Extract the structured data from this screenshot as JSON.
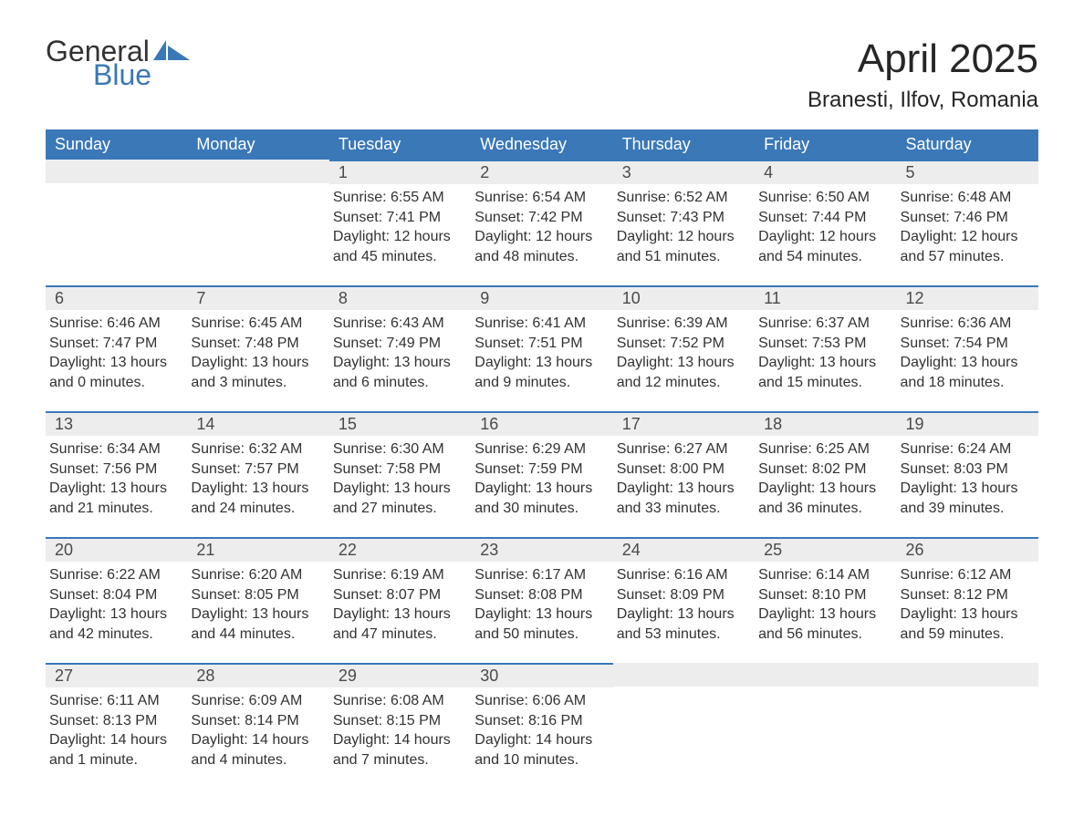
{
  "logo": {
    "general": "General",
    "blue": "Blue"
  },
  "title": {
    "month": "April 2025",
    "location": "Branesti, Ilfov, Romania"
  },
  "colors": {
    "header_bg": "#3a78b8",
    "header_text": "#ffffff",
    "daynum_bg": "#ededed",
    "daynum_border": "#3a78b8",
    "body_text": "#323232",
    "page_bg": "#ffffff",
    "logo_blue": "#3a78b8"
  },
  "weekdays": [
    "Sunday",
    "Monday",
    "Tuesday",
    "Wednesday",
    "Thursday",
    "Friday",
    "Saturday"
  ],
  "weeks": [
    [
      {
        "day": "",
        "sunrise": "",
        "sunset": "",
        "daylight": ""
      },
      {
        "day": "",
        "sunrise": "",
        "sunset": "",
        "daylight": ""
      },
      {
        "day": "1",
        "sunrise": "Sunrise: 6:55 AM",
        "sunset": "Sunset: 7:41 PM",
        "daylight": "Daylight: 12 hours and 45 minutes."
      },
      {
        "day": "2",
        "sunrise": "Sunrise: 6:54 AM",
        "sunset": "Sunset: 7:42 PM",
        "daylight": "Daylight: 12 hours and 48 minutes."
      },
      {
        "day": "3",
        "sunrise": "Sunrise: 6:52 AM",
        "sunset": "Sunset: 7:43 PM",
        "daylight": "Daylight: 12 hours and 51 minutes."
      },
      {
        "day": "4",
        "sunrise": "Sunrise: 6:50 AM",
        "sunset": "Sunset: 7:44 PM",
        "daylight": "Daylight: 12 hours and 54 minutes."
      },
      {
        "day": "5",
        "sunrise": "Sunrise: 6:48 AM",
        "sunset": "Sunset: 7:46 PM",
        "daylight": "Daylight: 12 hours and 57 minutes."
      }
    ],
    [
      {
        "day": "6",
        "sunrise": "Sunrise: 6:46 AM",
        "sunset": "Sunset: 7:47 PM",
        "daylight": "Daylight: 13 hours and 0 minutes."
      },
      {
        "day": "7",
        "sunrise": "Sunrise: 6:45 AM",
        "sunset": "Sunset: 7:48 PM",
        "daylight": "Daylight: 13 hours and 3 minutes."
      },
      {
        "day": "8",
        "sunrise": "Sunrise: 6:43 AM",
        "sunset": "Sunset: 7:49 PM",
        "daylight": "Daylight: 13 hours and 6 minutes."
      },
      {
        "day": "9",
        "sunrise": "Sunrise: 6:41 AM",
        "sunset": "Sunset: 7:51 PM",
        "daylight": "Daylight: 13 hours and 9 minutes."
      },
      {
        "day": "10",
        "sunrise": "Sunrise: 6:39 AM",
        "sunset": "Sunset: 7:52 PM",
        "daylight": "Daylight: 13 hours and 12 minutes."
      },
      {
        "day": "11",
        "sunrise": "Sunrise: 6:37 AM",
        "sunset": "Sunset: 7:53 PM",
        "daylight": "Daylight: 13 hours and 15 minutes."
      },
      {
        "day": "12",
        "sunrise": "Sunrise: 6:36 AM",
        "sunset": "Sunset: 7:54 PM",
        "daylight": "Daylight: 13 hours and 18 minutes."
      }
    ],
    [
      {
        "day": "13",
        "sunrise": "Sunrise: 6:34 AM",
        "sunset": "Sunset: 7:56 PM",
        "daylight": "Daylight: 13 hours and 21 minutes."
      },
      {
        "day": "14",
        "sunrise": "Sunrise: 6:32 AM",
        "sunset": "Sunset: 7:57 PM",
        "daylight": "Daylight: 13 hours and 24 minutes."
      },
      {
        "day": "15",
        "sunrise": "Sunrise: 6:30 AM",
        "sunset": "Sunset: 7:58 PM",
        "daylight": "Daylight: 13 hours and 27 minutes."
      },
      {
        "day": "16",
        "sunrise": "Sunrise: 6:29 AM",
        "sunset": "Sunset: 7:59 PM",
        "daylight": "Daylight: 13 hours and 30 minutes."
      },
      {
        "day": "17",
        "sunrise": "Sunrise: 6:27 AM",
        "sunset": "Sunset: 8:00 PM",
        "daylight": "Daylight: 13 hours and 33 minutes."
      },
      {
        "day": "18",
        "sunrise": "Sunrise: 6:25 AM",
        "sunset": "Sunset: 8:02 PM",
        "daylight": "Daylight: 13 hours and 36 minutes."
      },
      {
        "day": "19",
        "sunrise": "Sunrise: 6:24 AM",
        "sunset": "Sunset: 8:03 PM",
        "daylight": "Daylight: 13 hours and 39 minutes."
      }
    ],
    [
      {
        "day": "20",
        "sunrise": "Sunrise: 6:22 AM",
        "sunset": "Sunset: 8:04 PM",
        "daylight": "Daylight: 13 hours and 42 minutes."
      },
      {
        "day": "21",
        "sunrise": "Sunrise: 6:20 AM",
        "sunset": "Sunset: 8:05 PM",
        "daylight": "Daylight: 13 hours and 44 minutes."
      },
      {
        "day": "22",
        "sunrise": "Sunrise: 6:19 AM",
        "sunset": "Sunset: 8:07 PM",
        "daylight": "Daylight: 13 hours and 47 minutes."
      },
      {
        "day": "23",
        "sunrise": "Sunrise: 6:17 AM",
        "sunset": "Sunset: 8:08 PM",
        "daylight": "Daylight: 13 hours and 50 minutes."
      },
      {
        "day": "24",
        "sunrise": "Sunrise: 6:16 AM",
        "sunset": "Sunset: 8:09 PM",
        "daylight": "Daylight: 13 hours and 53 minutes."
      },
      {
        "day": "25",
        "sunrise": "Sunrise: 6:14 AM",
        "sunset": "Sunset: 8:10 PM",
        "daylight": "Daylight: 13 hours and 56 minutes."
      },
      {
        "day": "26",
        "sunrise": "Sunrise: 6:12 AM",
        "sunset": "Sunset: 8:12 PM",
        "daylight": "Daylight: 13 hours and 59 minutes."
      }
    ],
    [
      {
        "day": "27",
        "sunrise": "Sunrise: 6:11 AM",
        "sunset": "Sunset: 8:13 PM",
        "daylight": "Daylight: 14 hours and 1 minute."
      },
      {
        "day": "28",
        "sunrise": "Sunrise: 6:09 AM",
        "sunset": "Sunset: 8:14 PM",
        "daylight": "Daylight: 14 hours and 4 minutes."
      },
      {
        "day": "29",
        "sunrise": "Sunrise: 6:08 AM",
        "sunset": "Sunset: 8:15 PM",
        "daylight": "Daylight: 14 hours and 7 minutes."
      },
      {
        "day": "30",
        "sunrise": "Sunrise: 6:06 AM",
        "sunset": "Sunset: 8:16 PM",
        "daylight": "Daylight: 14 hours and 10 minutes."
      },
      {
        "day": "",
        "sunrise": "",
        "sunset": "",
        "daylight": ""
      },
      {
        "day": "",
        "sunrise": "",
        "sunset": "",
        "daylight": ""
      },
      {
        "day": "",
        "sunrise": "",
        "sunset": "",
        "daylight": ""
      }
    ]
  ]
}
